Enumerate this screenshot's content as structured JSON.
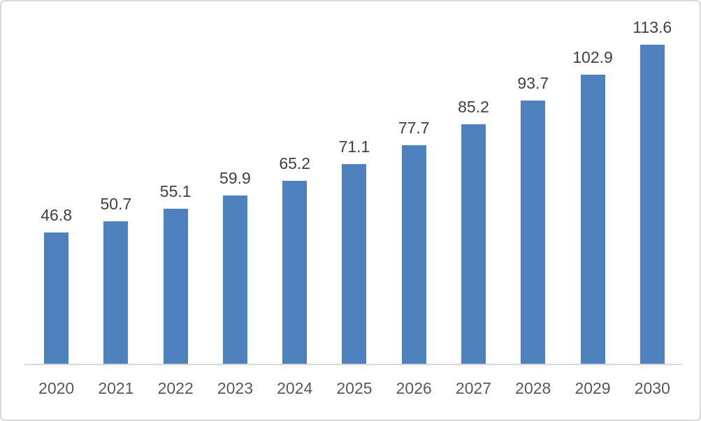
{
  "chart_data": {
    "type": "bar",
    "title": "",
    "xlabel": "",
    "ylabel": "",
    "categories": [
      "2020",
      "2021",
      "2022",
      "2023",
      "2024",
      "2025",
      "2026",
      "2027",
      "2028",
      "2029",
      "2030"
    ],
    "values": [
      46.8,
      50.7,
      55.1,
      59.9,
      65.2,
      71.1,
      77.7,
      85.2,
      93.7,
      102.9,
      113.6
    ],
    "ylim": [
      0,
      120
    ],
    "grid": false,
    "legend": false,
    "data_labels_visible": true,
    "decimals": 1,
    "colors": {
      "bar": "#4e81bd",
      "axis_line": "#d9d9d9",
      "data_label": "#404040",
      "tick_label": "#595959",
      "frame_border": "#d9d9d9",
      "background": "#ffffff"
    }
  }
}
